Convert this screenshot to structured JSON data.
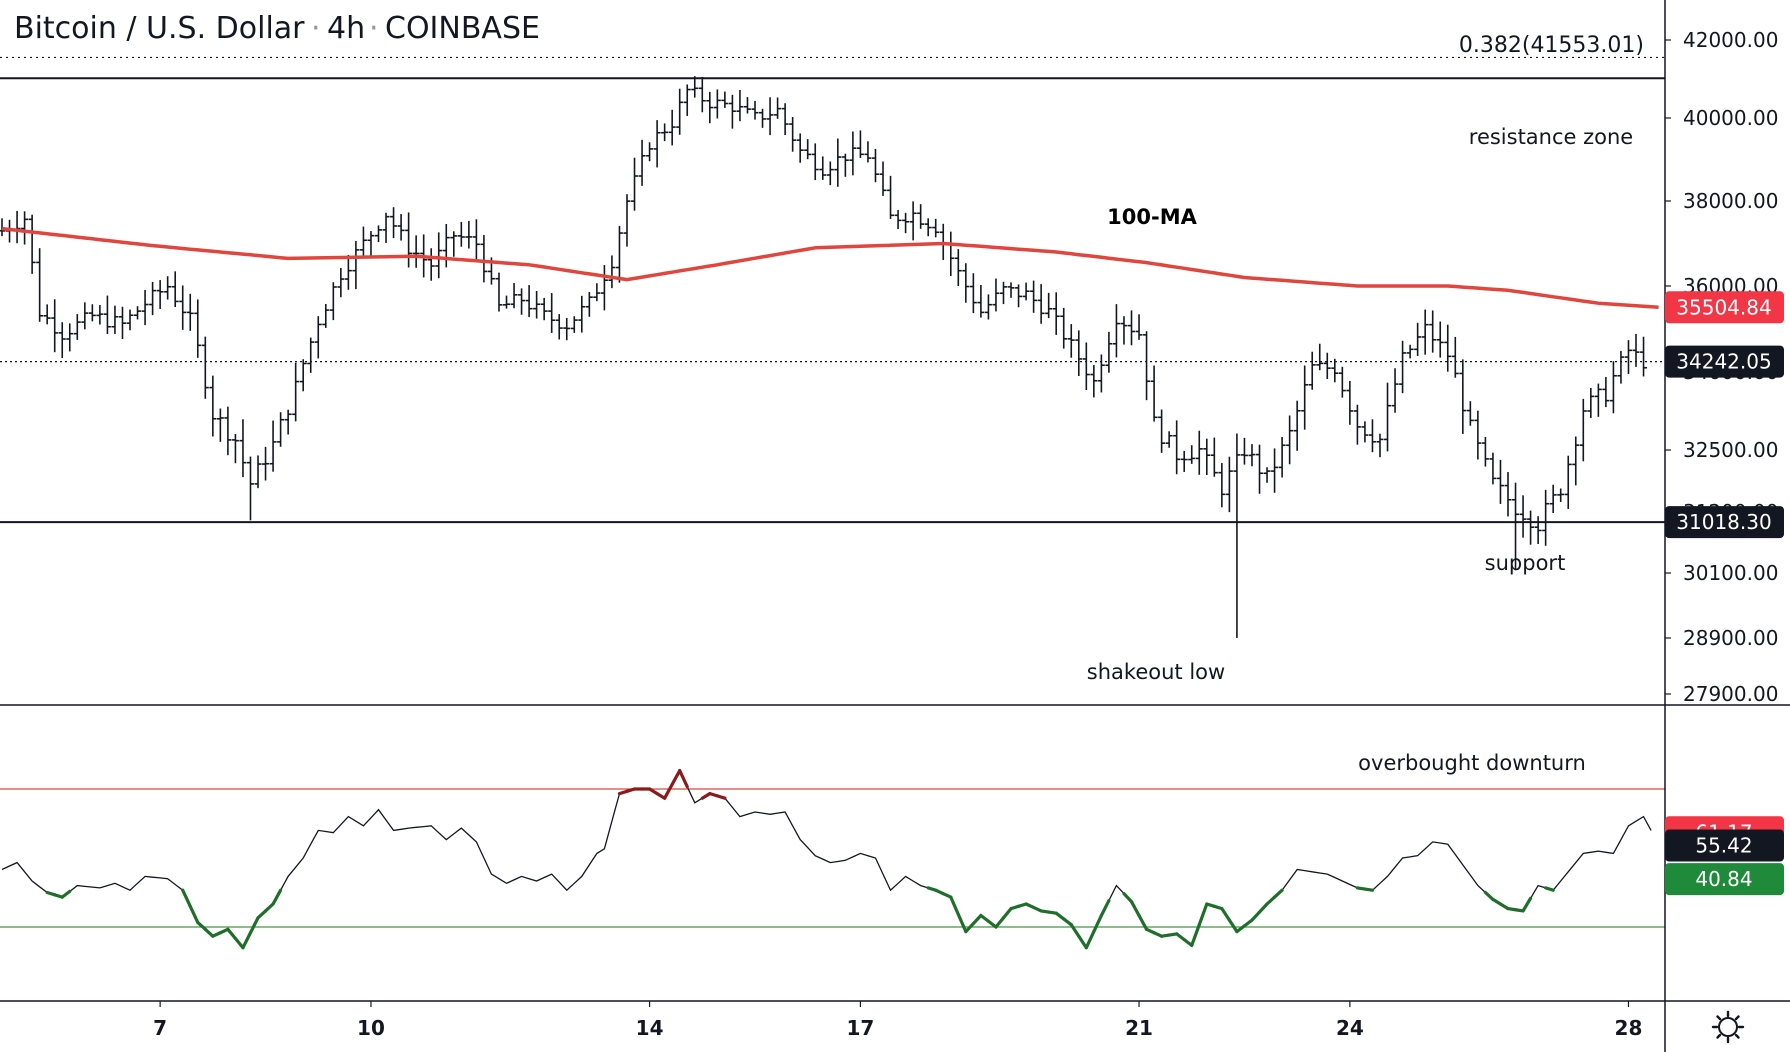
{
  "title": {
    "symbol": "Bitcoin / U.S. Dollar",
    "interval": "4h",
    "exchange": "COINBASE"
  },
  "colors": {
    "ma": "#e0463e",
    "overbought": "#e0463e",
    "oversold": "#3d9a3f",
    "osc_over": "#8b1a1a",
    "osc_under": "#1f6e2a",
    "badge_red": "#f23645",
    "badge_dark": "#131722",
    "badge_green": "#1e8a3a"
  },
  "annotations": {
    "fib": "0.382(41553.01)",
    "resistance": "resistance zone",
    "ma": "100-MA",
    "support": "support",
    "shakeout": "shakeout low",
    "overbought": "overbought downturn"
  },
  "chart_data": [
    {
      "type": "ohlc",
      "ylim": [
        27400,
        43200
      ],
      "y_ticks": [
        "42000.00",
        "40000.00",
        "38000.00",
        "36000.00",
        "34000.00",
        "32500.00",
        "31200.00",
        "30100.00",
        "28900.00",
        "27900.00"
      ],
      "y_tick_values": [
        42000,
        40000,
        38000,
        36000,
        34000,
        32500,
        31200,
        30100,
        28900,
        27900
      ],
      "x_ticks": [
        "7",
        "10",
        "14",
        "17",
        "21",
        "24",
        "28"
      ],
      "x_tick_bars": [
        21,
        49,
        86,
        114,
        151,
        179,
        216
      ],
      "levels": {
        "fib_0382": 41553.01,
        "resistance": 41020,
        "support": 31018.3,
        "current_price": 34242.05
      },
      "price_badges": [
        {
          "label": "35504.84",
          "value": 35504.84,
          "color": "badge_red"
        },
        {
          "label": "34242.05",
          "value": 34242.05,
          "color": "badge_dark"
        },
        {
          "label": "31018.30",
          "value": 31018.3,
          "color": "badge_dark"
        }
      ],
      "close_anchors": [
        [
          0,
          37300
        ],
        [
          3,
          37600
        ],
        [
          5,
          35400
        ],
        [
          8,
          34900
        ],
        [
          12,
          35300
        ],
        [
          16,
          35100
        ],
        [
          19,
          35600
        ],
        [
          22,
          36000
        ],
        [
          25,
          35200
        ],
        [
          28,
          33200
        ],
        [
          31,
          32700
        ],
        [
          33,
          31800
        ],
        [
          36,
          32600
        ],
        [
          39,
          33700
        ],
        [
          42,
          35200
        ],
        [
          45,
          36300
        ],
        [
          48,
          37000
        ],
        [
          51,
          37700
        ],
        [
          54,
          36900
        ],
        [
          57,
          36500
        ],
        [
          60,
          37200
        ],
        [
          63,
          37000
        ],
        [
          66,
          35500
        ],
        [
          69,
          35700
        ],
        [
          72,
          35300
        ],
        [
          75,
          35100
        ],
        [
          78,
          35600
        ],
        [
          81,
          36600
        ],
        [
          83,
          38000
        ],
        [
          86,
          39400
        ],
        [
          89,
          39900
        ],
        [
          91,
          40700
        ],
        [
          94,
          40400
        ],
        [
          97,
          40300
        ],
        [
          100,
          40000
        ],
        [
          103,
          40200
        ],
        [
          106,
          39200
        ],
        [
          109,
          38800
        ],
        [
          112,
          39100
        ],
        [
          115,
          39100
        ],
        [
          118,
          37600
        ],
        [
          121,
          37700
        ],
        [
          124,
          37400
        ],
        [
          127,
          36300
        ],
        [
          130,
          35400
        ],
        [
          133,
          35900
        ],
        [
          136,
          35800
        ],
        [
          139,
          35400
        ],
        [
          142,
          34600
        ],
        [
          145,
          33800
        ],
        [
          148,
          35300
        ],
        [
          151,
          34900
        ],
        [
          153,
          33000
        ],
        [
          156,
          32400
        ],
        [
          159,
          32500
        ],
        [
          162,
          31700
        ],
        [
          165,
          32500
        ],
        [
          168,
          31900
        ],
        [
          171,
          32800
        ],
        [
          174,
          34100
        ],
        [
          177,
          34100
        ],
        [
          180,
          33000
        ],
        [
          183,
          32700
        ],
        [
          186,
          34300
        ],
        [
          189,
          35000
        ],
        [
          192,
          34400
        ],
        [
          195,
          32900
        ],
        [
          198,
          31800
        ],
        [
          201,
          31300
        ],
        [
          204,
          31000
        ],
        [
          207,
          31700
        ],
        [
          210,
          33300
        ],
        [
          213,
          33600
        ],
        [
          216,
          34500
        ],
        [
          218,
          34240
        ]
      ],
      "ma_100": [
        [
          0,
          37350
        ],
        [
          20,
          36950
        ],
        [
          38,
          36650
        ],
        [
          55,
          36700
        ],
        [
          70,
          36500
        ],
        [
          83,
          36150
        ],
        [
          95,
          36500
        ],
        [
          108,
          36900
        ],
        [
          125,
          37000
        ],
        [
          140,
          36800
        ],
        [
          152,
          36550
        ],
        [
          165,
          36200
        ],
        [
          180,
          36000
        ],
        [
          192,
          36000
        ],
        [
          200,
          35900
        ],
        [
          212,
          35600
        ],
        [
          220,
          35505
        ]
      ],
      "low_wicks": [
        {
          "bar": 33,
          "low": 31050
        },
        {
          "bar": 164,
          "low": 28900
        },
        {
          "bar": 201,
          "low": 30150
        }
      ]
    },
    {
      "type": "line",
      "name": "oscillator",
      "ylim": [
        0,
        100
      ],
      "overbought": 80,
      "oversold": 20,
      "badges": [
        {
          "label": "61.17",
          "value": 61.17,
          "color": "badge_red"
        },
        {
          "label": "55.42",
          "value": 55.42,
          "color": "badge_dark"
        },
        {
          "label": "40.84",
          "value": 40.84,
          "color": "badge_green"
        }
      ],
      "anchors": [
        [
          0,
          45
        ],
        [
          2,
          48
        ],
        [
          4,
          40
        ],
        [
          6,
          35
        ],
        [
          8,
          33
        ],
        [
          10,
          38
        ],
        [
          13,
          37
        ],
        [
          15,
          39
        ],
        [
          17,
          36
        ],
        [
          19,
          42
        ],
        [
          22,
          41
        ],
        [
          24,
          36
        ],
        [
          26,
          22
        ],
        [
          28,
          16
        ],
        [
          30,
          19
        ],
        [
          32,
          11
        ],
        [
          34,
          24
        ],
        [
          36,
          30
        ],
        [
          38,
          42
        ],
        [
          40,
          50
        ],
        [
          42,
          62
        ],
        [
          44,
          61
        ],
        [
          46,
          68
        ],
        [
          48,
          64
        ],
        [
          50,
          71
        ],
        [
          52,
          62
        ],
        [
          54,
          63
        ],
        [
          57,
          64
        ],
        [
          59,
          58
        ],
        [
          61,
          63
        ],
        [
          63,
          57
        ],
        [
          65,
          43
        ],
        [
          67,
          39
        ],
        [
          69,
          42
        ],
        [
          71,
          40
        ],
        [
          73,
          43
        ],
        [
          75,
          36
        ],
        [
          77,
          42
        ],
        [
          79,
          52
        ],
        [
          80,
          54
        ],
        [
          82,
          78
        ],
        [
          84,
          80
        ],
        [
          86,
          80
        ],
        [
          88,
          76
        ],
        [
          90,
          88
        ],
        [
          92,
          74
        ],
        [
          94,
          78
        ],
        [
          96,
          76
        ],
        [
          98,
          68
        ],
        [
          100,
          70
        ],
        [
          102,
          69
        ],
        [
          104,
          70
        ],
        [
          106,
          58
        ],
        [
          108,
          51
        ],
        [
          110,
          48
        ],
        [
          112,
          49
        ],
        [
          114,
          52
        ],
        [
          116,
          50
        ],
        [
          118,
          36
        ],
        [
          120,
          42
        ],
        [
          122,
          38
        ],
        [
          124,
          36
        ],
        [
          126,
          33
        ],
        [
          128,
          18
        ],
        [
          130,
          25
        ],
        [
          132,
          20
        ],
        [
          134,
          28
        ],
        [
          136,
          30
        ],
        [
          138,
          27
        ],
        [
          140,
          26
        ],
        [
          142,
          21
        ],
        [
          144,
          11
        ],
        [
          146,
          25
        ],
        [
          148,
          38
        ],
        [
          150,
          31
        ],
        [
          152,
          19
        ],
        [
          154,
          16
        ],
        [
          156,
          17
        ],
        [
          158,
          12
        ],
        [
          160,
          30
        ],
        [
          162,
          28
        ],
        [
          164,
          18
        ],
        [
          166,
          23
        ],
        [
          168,
          30
        ],
        [
          170,
          36
        ],
        [
          172,
          45
        ],
        [
          174,
          44
        ],
        [
          176,
          43
        ],
        [
          178,
          40
        ],
        [
          180,
          37
        ],
        [
          182,
          36
        ],
        [
          184,
          42
        ],
        [
          186,
          50
        ],
        [
          188,
          51
        ],
        [
          190,
          57
        ],
        [
          192,
          56
        ],
        [
          194,
          47
        ],
        [
          196,
          38
        ],
        [
          198,
          32
        ],
        [
          200,
          28
        ],
        [
          202,
          27
        ],
        [
          204,
          38
        ],
        [
          206,
          36
        ],
        [
          208,
          44
        ],
        [
          210,
          52
        ],
        [
          212,
          53
        ],
        [
          214,
          52
        ],
        [
          216,
          64
        ],
        [
          218,
          68
        ],
        [
          219,
          62
        ]
      ]
    }
  ]
}
